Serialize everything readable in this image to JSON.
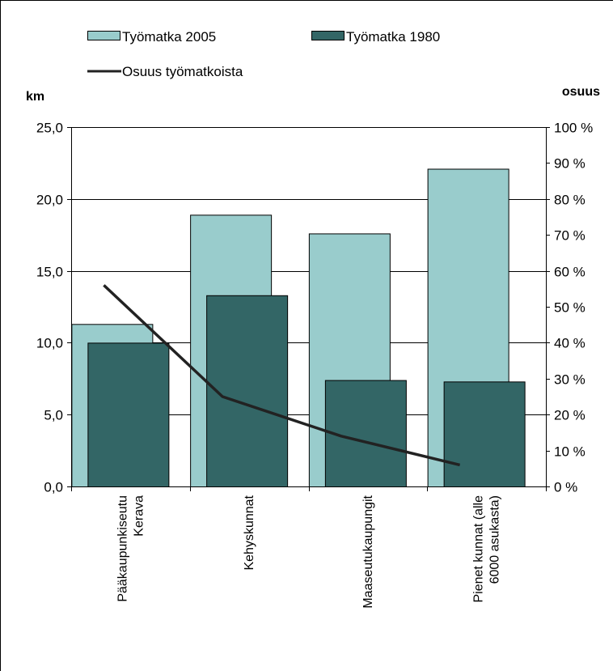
{
  "chart_data": {
    "type": "bar",
    "title": "",
    "categories": [
      [
        "Pääkaupunkiseutu",
        "Kerava"
      ],
      [
        "Kehyskunnat"
      ],
      [
        "Maaseutukaupungit"
      ],
      [
        "Pienet kunnat (alle",
        "6000 asukasta)"
      ]
    ],
    "series": [
      {
        "name": "Työmatka 2005",
        "type": "bar",
        "axis": "left",
        "color": "#99cccc",
        "values": [
          11.3,
          18.9,
          17.6,
          22.1
        ]
      },
      {
        "name": "Työmatka 1980",
        "type": "bar",
        "axis": "left",
        "color": "#336666",
        "values": [
          10.0,
          13.3,
          7.4,
          7.3
        ]
      },
      {
        "name": "Osuus työmatkoista",
        "type": "line",
        "axis": "right",
        "color": "#222222",
        "values": [
          56,
          25,
          14,
          6
        ]
      }
    ],
    "ylabel_left": "km",
    "ylabel_right": "osuus",
    "ylim_left": [
      0,
      25
    ],
    "ylim_right": [
      0,
      100
    ],
    "yticks_left": [
      "0,0",
      "5,0",
      "10,0",
      "15,0",
      "20,0",
      "25,0"
    ],
    "yticks_right": [
      "0 %",
      "10 %",
      "20 %",
      "30 %",
      "40 %",
      "50 %",
      "60 %",
      "70 %",
      "80 %",
      "90 %",
      "100 %"
    ],
    "grid": true,
    "legend": "top"
  }
}
